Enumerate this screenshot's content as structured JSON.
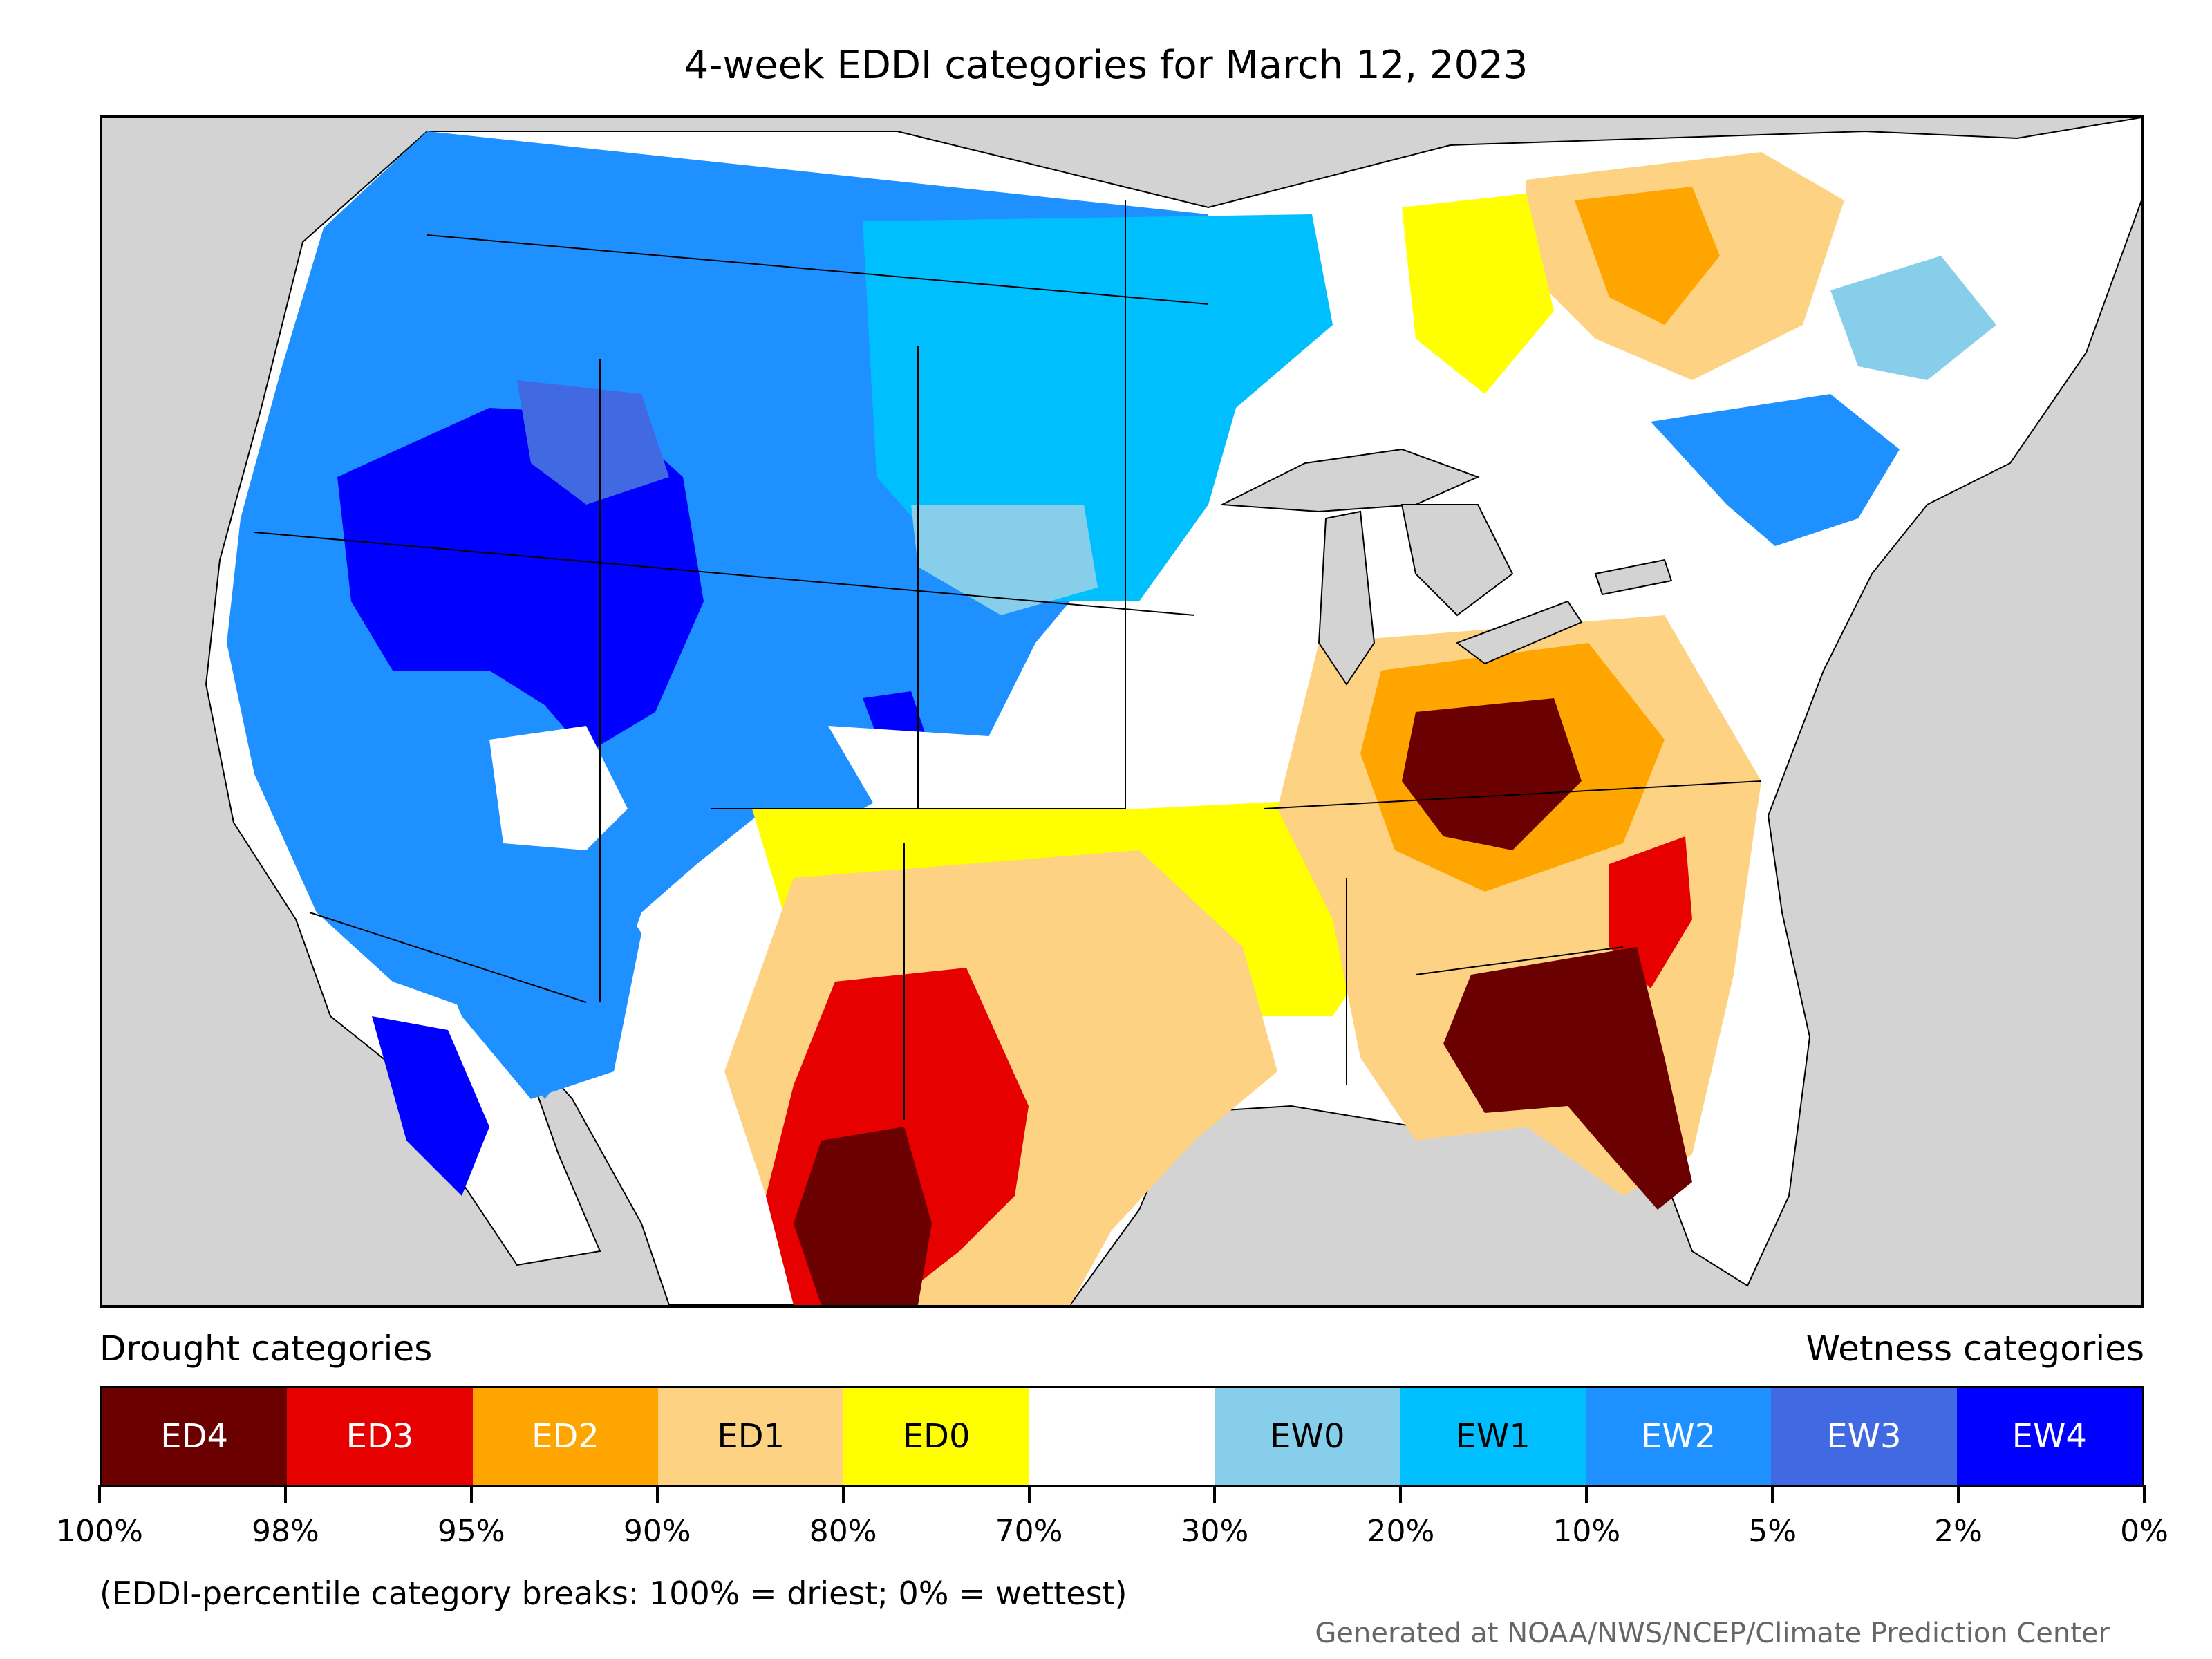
{
  "title": "4-week EDDI categories for March 12, 2023",
  "legend": {
    "drought_heading": "Drought categories",
    "wetness_heading": "Wetness categories",
    "categories": [
      {
        "label": "ED4",
        "color": "#6b0000",
        "text_color": "#ffffff"
      },
      {
        "label": "ED3",
        "color": "#e60000",
        "text_color": "#ffffff"
      },
      {
        "label": "ED2",
        "color": "#ffa500",
        "text_color": "#ffffff"
      },
      {
        "label": "ED1",
        "color": "#fdd283",
        "text_color": "#000000"
      },
      {
        "label": "ED0",
        "color": "#ffff00",
        "text_color": "#000000"
      },
      {
        "label": "",
        "color": "#ffffff",
        "text_color": "#000000"
      },
      {
        "label": "EW0",
        "color": "#87ceeb",
        "text_color": "#000000"
      },
      {
        "label": "EW1",
        "color": "#00bfff",
        "text_color": "#000000"
      },
      {
        "label": "EW2",
        "color": "#1e90ff",
        "text_color": "#ffffff"
      },
      {
        "label": "EW3",
        "color": "#4169e1",
        "text_color": "#ffffff"
      },
      {
        "label": "EW4",
        "color": "#0000ff",
        "text_color": "#ffffff"
      }
    ],
    "tick_labels": [
      "100%",
      "98%",
      "95%",
      "90%",
      "80%",
      "70%",
      "30%",
      "20%",
      "10%",
      "5%",
      "2%",
      "0%"
    ]
  },
  "note": "(EDDI-percentile category breaks: 100% = driest; 0% = wettest)",
  "credit": "Generated at NOAA/NWS/NCEP/Climate Prediction Center",
  "map": {
    "ocean_color": "#d3d3d3",
    "lake_color": "#d3d3d3",
    "regions": [
      {
        "name": "wet-west",
        "category": "EW2"
      },
      {
        "name": "wet-great-basin",
        "category": "EW4"
      },
      {
        "name": "wet-northern-plains",
        "category": "EW1"
      },
      {
        "name": "dry-southern-plains",
        "category": "ED1"
      },
      {
        "name": "dry-west-texas",
        "category": "ED3"
      },
      {
        "name": "dry-ohio-valley",
        "category": "ED4"
      },
      {
        "name": "dry-southeast",
        "category": "ED4"
      },
      {
        "name": "dry-quebec",
        "category": "ED2"
      },
      {
        "name": "wet-new-england",
        "category": "EW2"
      }
    ]
  }
}
